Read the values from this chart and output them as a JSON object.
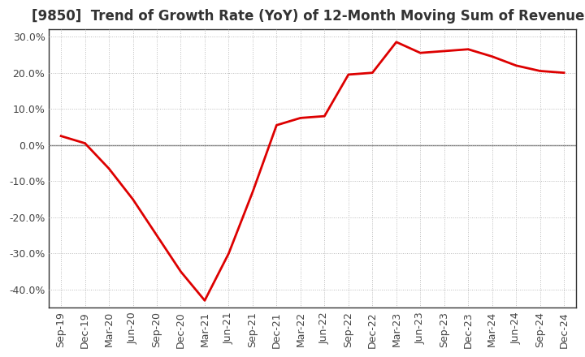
{
  "title": "[9850]  Trend of Growth Rate (YoY) of 12-Month Moving Sum of Revenues",
  "x_labels": [
    "Sep-19",
    "Dec-19",
    "Mar-20",
    "Jun-20",
    "Sep-20",
    "Dec-20",
    "Mar-21",
    "Jun-21",
    "Sep-21",
    "Dec-21",
    "Mar-22",
    "Jun-22",
    "Sep-22",
    "Dec-22",
    "Mar-23",
    "Jun-23",
    "Sep-23",
    "Dec-23",
    "Mar-24",
    "Jun-24",
    "Sep-24",
    "Dec-24"
  ],
  "y_values": [
    2.5,
    0.5,
    -6.5,
    -15.0,
    -25.0,
    -35.0,
    -43.0,
    -30.0,
    -13.0,
    5.5,
    7.5,
    8.0,
    19.5,
    20.0,
    28.5,
    25.5,
    26.0,
    26.5,
    24.5,
    22.0,
    20.5,
    20.0
  ],
  "line_color": "#dd0000",
  "background_color": "#ffffff",
  "grid_color": "#bbbbbb",
  "zero_line_color": "#777777",
  "ylim": [
    -45,
    32
  ],
  "yticks": [
    -40.0,
    -30.0,
    -20.0,
    -10.0,
    0.0,
    10.0,
    20.0,
    30.0
  ],
  "title_fontsize": 12,
  "tick_fontsize": 9,
  "line_width": 2.0
}
